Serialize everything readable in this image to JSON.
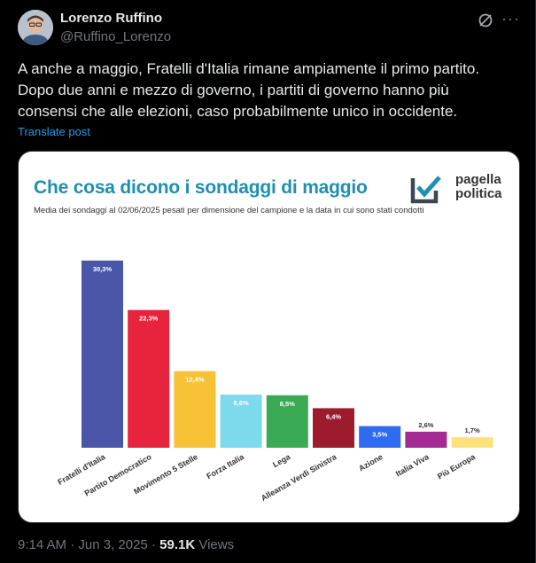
{
  "author": {
    "name": "Lorenzo Ruffino",
    "handle": "@Ruffino_Lorenzo"
  },
  "icons": {
    "grok": "grok-icon",
    "more": "more-icon"
  },
  "tweet": {
    "text": "A anche a maggio, Fratelli d'Italia rimane ampiamente il primo partito.\nDopo due anni e mezzo di governo, i partiti di governo hanno più\nconsensi che alle elezioni, caso probabilmente unico in occidente.",
    "translate_label": "Translate post"
  },
  "footer": {
    "time": "9:14 AM",
    "sep1": "·",
    "date": "Jun 3, 2025",
    "sep2": "·",
    "views_count": "59.1K",
    "views_label": "Views"
  },
  "media": {
    "logo_line1": "pagella",
    "logo_line2": "politica"
  },
  "chart_data": {
    "type": "bar",
    "title": "Che cosa dicono i sondaggi di maggio",
    "subtitle": "Media dei sondaggi al 02/06/2025 pesati per dimensione del campione e la data in cui sono stati condotti",
    "categories": [
      "Fratelli d'Italia",
      "Partito Democratico",
      "Movimento 5 Stelle",
      "Forza Italia",
      "Lega",
      "Alleanza Verdi Sinistra",
      "Azione",
      "Italia Viva",
      "Più Europa"
    ],
    "values": [
      30.3,
      22.3,
      12.4,
      8.6,
      8.5,
      6.4,
      3.5,
      2.6,
      1.7
    ],
    "labels": [
      "30,3%",
      "22,3%",
      "12,4%",
      "8,6%",
      "8,5%",
      "6,4%",
      "3,5%",
      "2,6%",
      "1,7%"
    ],
    "colors": [
      "#4a57a8",
      "#e8233d",
      "#f7c235",
      "#7dd9ec",
      "#3aaa55",
      "#9c1c2e",
      "#2e6bf0",
      "#a42b93",
      "#fde17a"
    ],
    "label_colors": [
      "#ffffff",
      "#ffffff",
      "#ffffff",
      "#ffffff",
      "#ffffff",
      "#ffffff",
      "#ffffff",
      "#ffffff",
      "#333333"
    ],
    "ylim": [
      0,
      31
    ],
    "grid": false
  }
}
